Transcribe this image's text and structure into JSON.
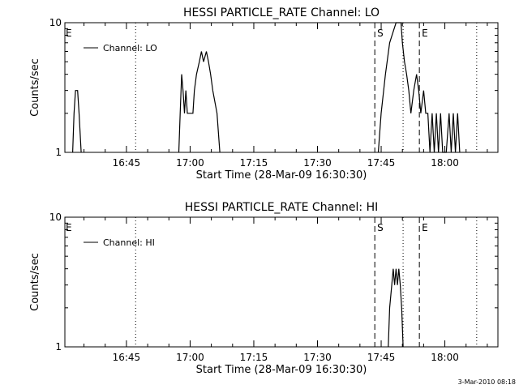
{
  "timestamp": "3-Mar-2010 08:18",
  "chart_data": [
    {
      "type": "line",
      "title": "HESSI PARTICLE_RATE Channel: LO",
      "xlabel": "Start Time (28-Mar-09 16:30:30)",
      "ylabel": "Counts/sec",
      "yscale": "log",
      "ylim": [
        1,
        10
      ],
      "xlim": [
        "16:30:30",
        "18:12:30"
      ],
      "x_ticks": [
        "16:45",
        "17:00",
        "17:15",
        "17:30",
        "17:45",
        "18:00"
      ],
      "y_ticks": [
        "1",
        "10"
      ],
      "legend": {
        "label": "Channel: LO",
        "placement": "top-left"
      },
      "markers": [
        {
          "label": "E",
          "time": "16:30:30",
          "style": "none"
        },
        {
          "label": "",
          "time": "16:47:10",
          "style": "dotted"
        },
        {
          "label": "S",
          "time": "17:43:30",
          "style": "dashed"
        },
        {
          "label": "",
          "time": "17:50:10",
          "style": "dotted"
        },
        {
          "label": "E",
          "time": "17:54:00",
          "style": "dashed"
        },
        {
          "label": "",
          "time": "18:07:30",
          "style": "dotted"
        }
      ],
      "series": [
        {
          "segments": [
            [
              [
                "16:32:20",
                1
              ],
              [
                "16:32:40",
                2
              ],
              [
                "16:33:00",
                3
              ],
              [
                "16:33:30",
                3
              ],
              [
                "16:33:50",
                2
              ],
              [
                "16:34:20",
                1
              ]
            ],
            [
              [
                "16:57:20",
                1
              ],
              [
                "16:57:40",
                2
              ],
              [
                "16:58:00",
                4
              ],
              [
                "16:58:20",
                3
              ],
              [
                "16:58:40",
                2
              ],
              [
                "16:59:00",
                3
              ],
              [
                "16:59:20",
                2
              ],
              [
                "17:00:40",
                2
              ],
              [
                "17:01:00",
                3
              ],
              [
                "17:01:30",
                4
              ],
              [
                "17:02:10",
                5
              ],
              [
                "17:02:40",
                6
              ],
              [
                "17:03:10",
                5
              ],
              [
                "17:03:50",
                6
              ],
              [
                "17:04:20",
                5
              ],
              [
                "17:04:50",
                4
              ],
              [
                "17:05:20",
                3
              ],
              [
                "17:06:20",
                2
              ],
              [
                "17:07:00",
                1
              ]
            ],
            [
              [
                "17:44:20",
                1
              ],
              [
                "17:45:00",
                2
              ],
              [
                "17:46:00",
                4
              ],
              [
                "17:47:00",
                7
              ],
              [
                "17:48:30",
                10
              ],
              [
                "17:49:40",
                10
              ],
              [
                "17:50:00",
                7
              ],
              [
                "17:50:30",
                5
              ],
              [
                "17:51:00",
                4
              ],
              [
                "17:51:30",
                3
              ],
              [
                "17:52:00",
                2
              ],
              [
                "17:52:40",
                3
              ],
              [
                "17:53:20",
                4
              ],
              [
                "17:53:50",
                3
              ],
              [
                "17:54:20",
                2
              ],
              [
                "17:55:00",
                3
              ],
              [
                "17:55:30",
                2
              ],
              [
                "17:56:00",
                2
              ],
              [
                "17:56:30",
                1
              ],
              [
                "17:57:00",
                2
              ],
              [
                "17:57:30",
                1
              ],
              [
                "17:58:00",
                2
              ],
              [
                "17:58:30",
                1
              ],
              [
                "17:59:00",
                2
              ],
              [
                "17:59:30",
                1
              ],
              [
                "18:00:20",
                1
              ],
              [
                "18:01:00",
                2
              ],
              [
                "18:01:30",
                1
              ],
              [
                "18:02:00",
                2
              ],
              [
                "18:02:30",
                1
              ],
              [
                "18:03:00",
                2
              ],
              [
                "18:03:30",
                1
              ]
            ]
          ]
        }
      ]
    },
    {
      "type": "line",
      "title": "HESSI PARTICLE_RATE Channel: HI",
      "xlabel": "Start Time (28-Mar-09 16:30:30)",
      "ylabel": "Counts/sec",
      "yscale": "log",
      "ylim": [
        1,
        10
      ],
      "xlim": [
        "16:30:30",
        "18:12:30"
      ],
      "x_ticks": [
        "16:45",
        "17:00",
        "17:15",
        "17:30",
        "17:45",
        "18:00"
      ],
      "y_ticks": [
        "1",
        "10"
      ],
      "legend": {
        "label": "Channel: HI",
        "placement": "top-left"
      },
      "markers": [
        {
          "label": "E",
          "time": "16:30:30",
          "style": "none"
        },
        {
          "label": "",
          "time": "16:47:10",
          "style": "dotted"
        },
        {
          "label": "S",
          "time": "17:43:30",
          "style": "dashed"
        },
        {
          "label": "",
          "time": "17:50:10",
          "style": "dotted"
        },
        {
          "label": "E",
          "time": "17:54:00",
          "style": "dashed"
        },
        {
          "label": "",
          "time": "18:07:30",
          "style": "dotted"
        }
      ],
      "series": [
        {
          "segments": [
            [
              [
                "17:46:40",
                1
              ],
              [
                "17:47:00",
                2
              ],
              [
                "17:47:30",
                3
              ],
              [
                "17:47:50",
                4
              ],
              [
                "17:48:10",
                3
              ],
              [
                "17:48:30",
                4
              ],
              [
                "17:48:50",
                3
              ],
              [
                "17:49:10",
                4
              ],
              [
                "17:49:30",
                3
              ],
              [
                "17:49:50",
                2
              ],
              [
                "17:50:10",
                1
              ]
            ]
          ]
        }
      ]
    }
  ]
}
